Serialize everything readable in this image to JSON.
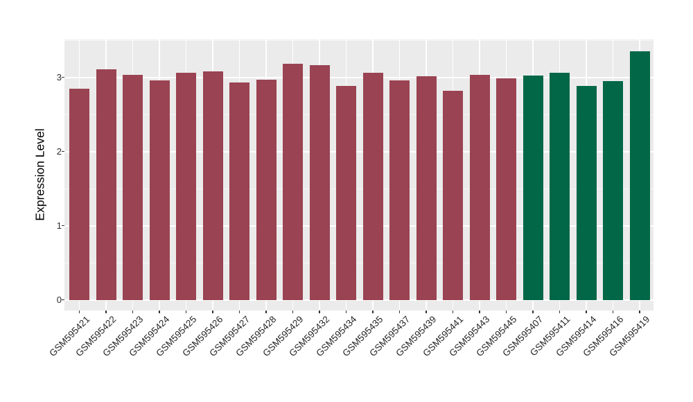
{
  "figure": {
    "background": "#FFFFFF",
    "panel_background": "#EBEBEB",
    "grid_color": "#FFFFFF",
    "tick_color": "#333333"
  },
  "chart_data": {
    "type": "bar",
    "title": "",
    "xlabel": "",
    "ylabel": "Expression Level",
    "ylim": [
      0,
      3.51
    ],
    "yticks": [
      0,
      1,
      2,
      3
    ],
    "yticks_minor": [
      0.5,
      1.5,
      2.5,
      3.5
    ],
    "grid": true,
    "legend_position": "none",
    "categories": [
      "GSM595421",
      "GSM595422",
      "GSM595423",
      "GSM595424",
      "GSM595425",
      "GSM595426",
      "GSM595427",
      "GSM595428",
      "GSM595429",
      "GSM595432",
      "GSM595434",
      "GSM595435",
      "GSM595437",
      "GSM595439",
      "GSM595441",
      "GSM595443",
      "GSM595445",
      "GSM595407",
      "GSM595411",
      "GSM595414",
      "GSM595416",
      "GSM595419"
    ],
    "values": [
      2.85,
      3.11,
      3.03,
      2.96,
      3.06,
      3.08,
      2.93,
      2.97,
      3.18,
      3.16,
      2.88,
      3.06,
      2.96,
      3.01,
      2.82,
      3.03,
      2.99,
      3.02,
      3.06,
      2.88,
      2.95,
      3.35
    ],
    "bar_groups": [
      "maroon",
      "maroon",
      "maroon",
      "maroon",
      "maroon",
      "maroon",
      "maroon",
      "maroon",
      "maroon",
      "maroon",
      "maroon",
      "maroon",
      "maroon",
      "maroon",
      "maroon",
      "maroon",
      "maroon",
      "green",
      "green",
      "green",
      "green",
      "green"
    ],
    "group_colors": {
      "maroon": "#9A4352",
      "green": "#016747"
    }
  }
}
